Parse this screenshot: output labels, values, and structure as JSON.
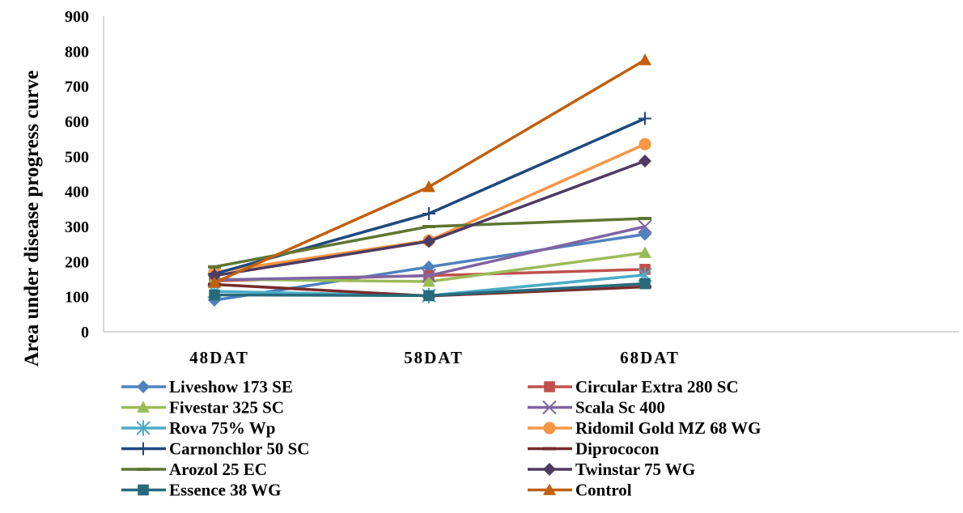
{
  "chart_data": {
    "type": "line",
    "ylabel": "Area under disease progress curve",
    "xlabel": "",
    "categories": [
      "48DAT",
      "58DAT",
      "68DAT"
    ],
    "ylim": [
      0,
      900
    ],
    "yticks": [
      0,
      100,
      200,
      300,
      400,
      500,
      600,
      700,
      800,
      900
    ],
    "grid": false,
    "legend": "bottom",
    "series": [
      {
        "name": "Liveshow 173 SE",
        "values": [
          90,
          185,
          278
        ],
        "color": "#4F81BD",
        "marker": "diamond"
      },
      {
        "name": "Circular Extra 280 SC",
        "values": [
          145,
          160,
          178
        ],
        "color": "#C0504D",
        "marker": "square"
      },
      {
        "name": "Fivestar 325 SC",
        "values": [
          150,
          143,
          225
        ],
        "color": "#9BBB59",
        "marker": "triangle"
      },
      {
        "name": "Scala Sc 400",
        "values": [
          148,
          160,
          300
        ],
        "color": "#8064A2",
        "marker": "x"
      },
      {
        "name": "Rova 75% Wp",
        "values": [
          115,
          103,
          162
        ],
        "color": "#4BACC6",
        "marker": "asterisk"
      },
      {
        "name": "Ridomil Gold MZ 68 WG",
        "values": [
          170,
          260,
          535
        ],
        "color": "#F79646",
        "marker": "circle"
      },
      {
        "name": "Carnonchlor 50 SC",
        "values": [
          165,
          337,
          608
        ],
        "color": "#1F497D",
        "marker": "plus"
      },
      {
        "name": "Diprococon",
        "values": [
          135,
          102,
          128
        ],
        "color": "#772C2A",
        "marker": "dash"
      },
      {
        "name": "Arozol 25 EC",
        "values": [
          185,
          300,
          323
        ],
        "color": "#5F7530",
        "marker": "dash"
      },
      {
        "name": "Twinstar 75 WG",
        "values": [
          160,
          258,
          487
        ],
        "color": "#4D3B62",
        "marker": "diamond"
      },
      {
        "name": "Essence 38 WG",
        "values": [
          105,
          103,
          137
        ],
        "color": "#276A7C",
        "marker": "square"
      },
      {
        "name": "Control",
        "values": [
          140,
          413,
          775
        ],
        "color": "#C0600F",
        "marker": "triangle"
      }
    ]
  }
}
